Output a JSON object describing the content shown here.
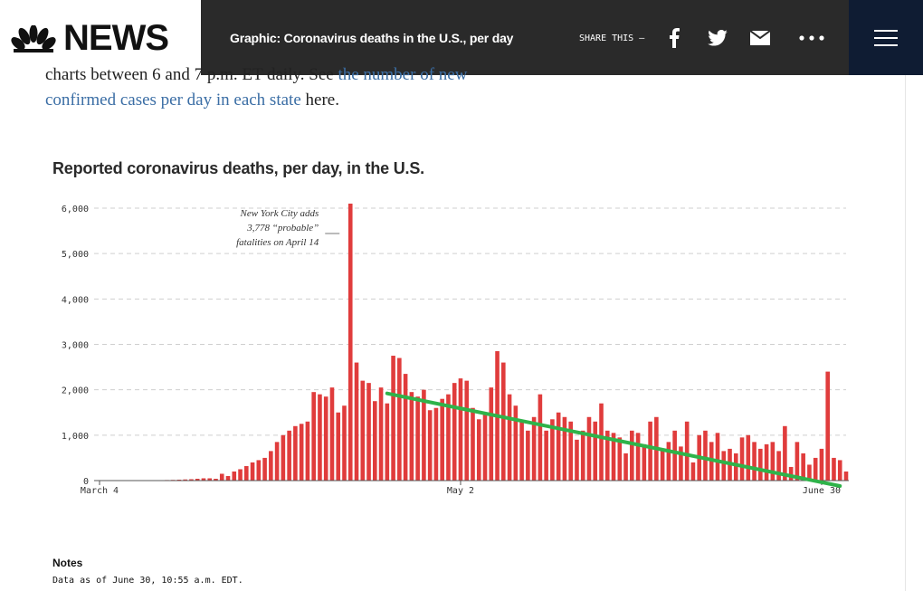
{
  "header": {
    "logo_text": "NEWS",
    "headline": "Graphic: Coronavirus deaths in the U.S., per day",
    "share_label": "SHARE THIS —",
    "icons": [
      "facebook-icon",
      "twitter-icon",
      "email-icon",
      "more-icon",
      "menu-icon"
    ]
  },
  "article": {
    "line1_text": "charts between 6 and 7 p.m. ET daily. See ",
    "line1_link": "the number of new",
    "line2_link": "confirmed cases per day in each state",
    "line2_text": " here."
  },
  "chart_data": {
    "type": "bar",
    "title": "Reported coronavirus deaths, per day, in the U.S.",
    "y_ticks": [
      "0",
      "1,000",
      "2,000",
      "3,000",
      "4,000",
      "5,000",
      "6,000"
    ],
    "ylim": [
      0,
      6000
    ],
    "x_ticks": [
      {
        "index": 0,
        "label": "March 4"
      },
      {
        "index": 59,
        "label": "May 2"
      },
      {
        "index": 118,
        "label": "June 30"
      }
    ],
    "annotation": {
      "lines": [
        "New York City adds",
        "3,778 “probable”",
        "fatalities on April 14"
      ],
      "index": 41
    },
    "bar_color": "#e03c3c",
    "trend_color": "#2fb34a",
    "trend_line": {
      "start": {
        "index": 47,
        "value": 1920
      },
      "end": {
        "index": 121,
        "value": -120
      }
    },
    "values": [
      5,
      5,
      5,
      5,
      5,
      5,
      5,
      5,
      10,
      10,
      10,
      12,
      15,
      20,
      25,
      30,
      40,
      50,
      50,
      40,
      150,
      100,
      200,
      250,
      320,
      400,
      450,
      500,
      650,
      850,
      1000,
      1100,
      1200,
      1250,
      1300,
      1950,
      1900,
      1850,
      2050,
      1500,
      1650,
      6100,
      2600,
      2200,
      2150,
      1750,
      2050,
      1700,
      2750,
      2700,
      2350,
      1950,
      1850,
      2000,
      1550,
      1600,
      1800,
      1900,
      2150,
      2250,
      2200,
      1600,
      1350,
      1500,
      2050,
      2850,
      2600,
      1900,
      1650,
      1300,
      1100,
      1400,
      1900,
      1100,
      1350,
      1500,
      1400,
      1300,
      900,
      1100,
      1400,
      1300,
      1700,
      1100,
      1050,
      950,
      600,
      1100,
      1050,
      800,
      1300,
      1400,
      700,
      850,
      1100,
      750,
      1300,
      400,
      1000,
      1100,
      850,
      1050,
      650,
      700,
      600,
      950,
      1000,
      850,
      700,
      800,
      850,
      650,
      1200,
      300,
      850,
      600,
      350,
      500,
      700,
      2400,
      500,
      450,
      200
    ]
  },
  "notes": {
    "heading": "Notes",
    "text": "Data as of June 30, 10:55 a.m. EDT."
  }
}
